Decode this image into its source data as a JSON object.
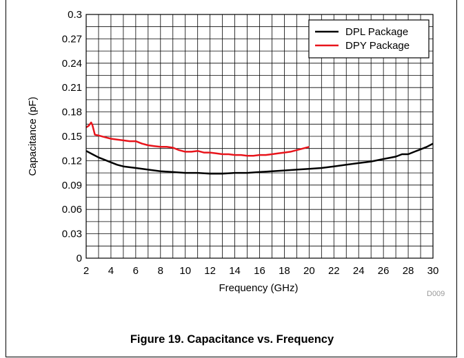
{
  "caption": "Figure 19. Capacitance vs. Frequency",
  "doc_code": "D009",
  "chart_data": {
    "type": "line",
    "title": "",
    "xlabel": "Frequency (GHz)",
    "ylabel": "Capacitance (pF)",
    "xlim": [
      2,
      30
    ],
    "ylim": [
      0,
      0.3
    ],
    "x_ticks": [
      "2",
      "4",
      "6",
      "8",
      "10",
      "12",
      "14",
      "16",
      "18",
      "20",
      "22",
      "24",
      "26",
      "28",
      "30"
    ],
    "y_ticks": [
      "0",
      "0.03",
      "0.06",
      "0.09",
      "0.12",
      "0.15",
      "0.18",
      "0.21",
      "0.24",
      "0.27",
      "0.3"
    ],
    "grid": true,
    "minor_grid": true,
    "legend_position": "top-right",
    "series": [
      {
        "name": "DPL Package",
        "color": "#000000",
        "points": [
          [
            2,
            0.132
          ],
          [
            2.5,
            0.128
          ],
          [
            3,
            0.124
          ],
          [
            3.5,
            0.121
          ],
          [
            4,
            0.118
          ],
          [
            4.5,
            0.115
          ],
          [
            5,
            0.113
          ],
          [
            6,
            0.111
          ],
          [
            7,
            0.109
          ],
          [
            8,
            0.107
          ],
          [
            9,
            0.106
          ],
          [
            10,
            0.105
          ],
          [
            11,
            0.105
          ],
          [
            12,
            0.104
          ],
          [
            13,
            0.104
          ],
          [
            14,
            0.105
          ],
          [
            15,
            0.105
          ],
          [
            16,
            0.106
          ],
          [
            17,
            0.107
          ],
          [
            18,
            0.108
          ],
          [
            19,
            0.109
          ],
          [
            20,
            0.11
          ],
          [
            21,
            0.111
          ],
          [
            22,
            0.113
          ],
          [
            23,
            0.115
          ],
          [
            24,
            0.117
          ],
          [
            25,
            0.119
          ],
          [
            26,
            0.122
          ],
          [
            27,
            0.125
          ],
          [
            27.5,
            0.128
          ],
          [
            28,
            0.128
          ],
          [
            28.5,
            0.131
          ],
          [
            29,
            0.134
          ],
          [
            29.5,
            0.137
          ],
          [
            30,
            0.141
          ]
        ]
      },
      {
        "name": "DPY Package",
        "color": "#e8141b",
        "points": [
          [
            2,
            0.161
          ],
          [
            2.2,
            0.163
          ],
          [
            2.4,
            0.167
          ],
          [
            2.5,
            0.164
          ],
          [
            2.7,
            0.152
          ],
          [
            3,
            0.151
          ],
          [
            3.5,
            0.149
          ],
          [
            4,
            0.147
          ],
          [
            4.5,
            0.146
          ],
          [
            5,
            0.145
          ],
          [
            5.5,
            0.144
          ],
          [
            6,
            0.144
          ],
          [
            6.5,
            0.141
          ],
          [
            7,
            0.139
          ],
          [
            7.5,
            0.138
          ],
          [
            8,
            0.137
          ],
          [
            8.5,
            0.137
          ],
          [
            9,
            0.136
          ],
          [
            9.5,
            0.133
          ],
          [
            10,
            0.131
          ],
          [
            10.5,
            0.131
          ],
          [
            11,
            0.132
          ],
          [
            11.5,
            0.13
          ],
          [
            12,
            0.13
          ],
          [
            12.5,
            0.129
          ],
          [
            13,
            0.128
          ],
          [
            13.5,
            0.128
          ],
          [
            14,
            0.127
          ],
          [
            14.5,
            0.127
          ],
          [
            15,
            0.126
          ],
          [
            15.5,
            0.126
          ],
          [
            16,
            0.127
          ],
          [
            16.5,
            0.127
          ],
          [
            17,
            0.128
          ],
          [
            17.5,
            0.129
          ],
          [
            18,
            0.13
          ],
          [
            18.5,
            0.131
          ],
          [
            19,
            0.133
          ],
          [
            19.5,
            0.135
          ],
          [
            20,
            0.137
          ]
        ]
      }
    ]
  }
}
